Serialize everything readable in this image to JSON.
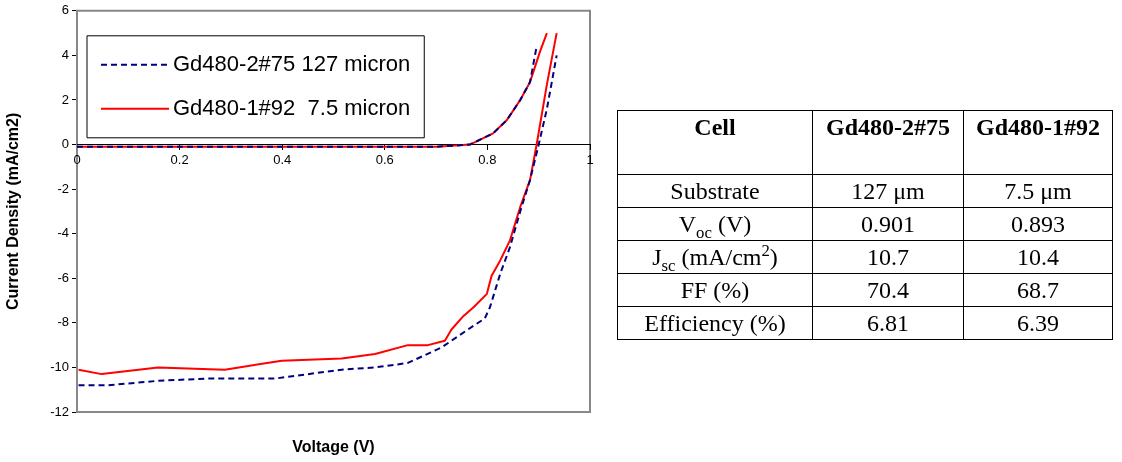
{
  "chart_data": [
    {
      "type": "line",
      "xlabel": "Voltage (V)",
      "ylabel": "Current Density (mA/cm2)",
      "xlim": [
        0,
        1
      ],
      "xticks": [
        0,
        0.2,
        0.4,
        0.6,
        0.8,
        1
      ],
      "ylim": [
        -12,
        6
      ],
      "yticks": [
        6,
        4,
        2,
        0,
        -2,
        -4,
        -6,
        -8,
        -10,
        -12
      ],
      "legend": "top left",
      "marker": "none",
      "series": [
        {
          "name": "Gd480-2#75 127 micron",
          "color": "#000080",
          "line_style": "dashed",
          "x": [
            0.003,
            0.06,
            0.158,
            0.255,
            0.386,
            0.516,
            0.581,
            0.645,
            0.711,
            0.762,
            0.795,
            0.805,
            0.825,
            0.844,
            0.864,
            0.883,
            0.899,
            0.916,
            0.935
          ],
          "values": [
            -10.8,
            -10.8,
            -10.6,
            -10.5,
            -10.5,
            -10.1,
            -10,
            -9.8,
            -9.1,
            -8.3,
            -7.8,
            -7.3,
            -5.8,
            -4.6,
            -3,
            -1.6,
            -0.1,
            1.6,
            4
          ]
        },
        {
          "name": "Gd480-1#92  7.5 micron",
          "color": "#ff0000",
          "line_style": "solid",
          "x": [
            0.003,
            0.048,
            0.158,
            0.288,
            0.399,
            0.516,
            0.581,
            0.645,
            0.684,
            0.717,
            0.73,
            0.753,
            0.773,
            0.799,
            0.808,
            0.825,
            0.844,
            0.864,
            0.883,
            0.896,
            0.916,
            0.935
          ],
          "values": [
            -10.1,
            -10.3,
            -10,
            -10.1,
            -9.7,
            -9.6,
            -9.4,
            -9,
            -9,
            -8.8,
            -8.3,
            -7.7,
            -7.3,
            -6.7,
            -5.9,
            -5.2,
            -4.3,
            -2.8,
            -1.6,
            0,
            2.7,
            5
          ]
        },
        {
          "color": "#000080",
          "line_style": "dashed",
          "x": [
            0,
            0.2,
            0.4,
            0.6,
            0.7,
            0.766,
            0.811,
            0.838,
            0.864,
            0.883,
            0.896
          ],
          "values": [
            -0.1,
            -0.1,
            -0.1,
            -0.1,
            -0.1,
            0,
            0.5,
            1.1,
            2,
            2.8,
            4.4
          ]
        },
        {
          "color": "#ff0000",
          "line_style": "solid",
          "x": [
            0,
            0.2,
            0.4,
            0.6,
            0.7,
            0.766,
            0.811,
            0.838,
            0.864,
            0.883,
            0.903,
            0.916
          ],
          "values": [
            -0.1,
            -0.1,
            -0.1,
            -0.1,
            -0.1,
            0,
            0.5,
            1.1,
            2,
            2.8,
            4.2,
            5
          ]
        }
      ]
    },
    {
      "type": "other",
      "annotations": [
        "Cell",
        "Gd480-2#75",
        "Gd480-1#92",
        "Substrate",
        "127 μm",
        "7.5 μm",
        "V$_{oc}$ (V)",
        "0.901",
        "0.893",
        "J$_{sc}$ (mA/cm$^{2}$)",
        "10.7",
        "10.4",
        "FF (%)",
        "70.4",
        "68.7",
        "Efficiency (%)",
        "6.81",
        "6.39"
      ]
    }
  ]
}
